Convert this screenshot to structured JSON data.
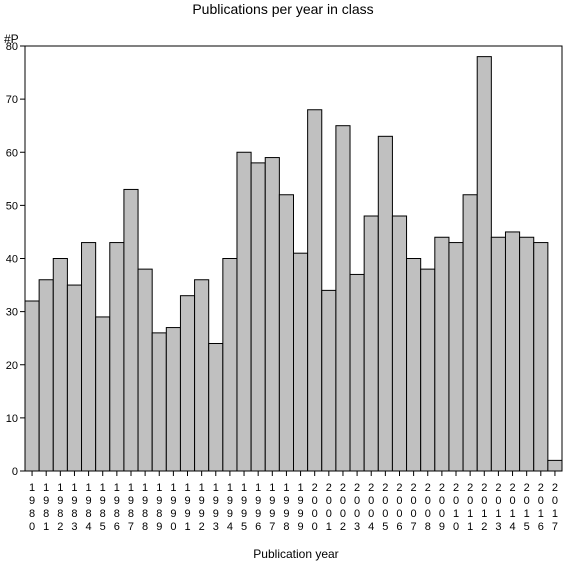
{
  "chart_data": {
    "type": "bar",
    "title": "Publications per year in class",
    "ylabel": "#P",
    "xlabel": "Publication year",
    "ylim": [
      0,
      80
    ],
    "yticks": [
      0,
      10,
      20,
      30,
      40,
      50,
      60,
      70,
      80
    ],
    "grid": false,
    "bar_color": "#c0c0c0",
    "categories": [
      "1980",
      "1981",
      "1982",
      "1983",
      "1984",
      "1985",
      "1986",
      "1987",
      "1988",
      "1989",
      "1990",
      "1991",
      "1992",
      "1993",
      "1994",
      "1995",
      "1996",
      "1997",
      "1998",
      "1999",
      "2000",
      "2001",
      "2002",
      "2003",
      "2004",
      "2005",
      "2006",
      "2007",
      "2008",
      "2009",
      "2010",
      "2011",
      "2012",
      "2013",
      "2014",
      "2015",
      "2016",
      "2017"
    ],
    "values": [
      32,
      36,
      40,
      35,
      43,
      29,
      43,
      53,
      38,
      26,
      27,
      33,
      36,
      24,
      40,
      60,
      58,
      59,
      52,
      41,
      68,
      34,
      65,
      37,
      48,
      63,
      48,
      40,
      38,
      44,
      43,
      52,
      78,
      44,
      45,
      44,
      43,
      2
    ]
  }
}
